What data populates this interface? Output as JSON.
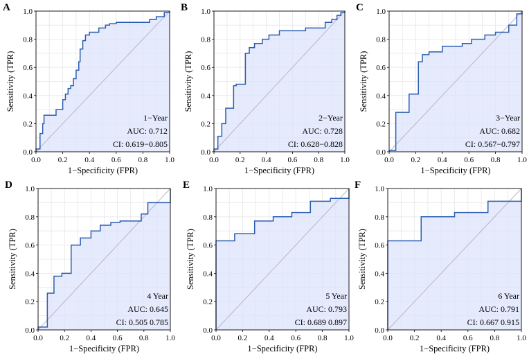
{
  "chart_data": [
    {
      "type": "line",
      "panel": "A",
      "series": [
        {
          "name": "ROC",
          "x": [
            0,
            0,
            0.03,
            0.03,
            0.05,
            0.05,
            0.06,
            0.06,
            0.1,
            0.15,
            0.15,
            0.2,
            0.2,
            0.22,
            0.22,
            0.24,
            0.24,
            0.26,
            0.26,
            0.28,
            0.28,
            0.3,
            0.3,
            0.32,
            0.32,
            0.33,
            0.33,
            0.35,
            0.35,
            0.37,
            0.37,
            0.4,
            0.4,
            0.47,
            0.47,
            0.52,
            0.52,
            0.55,
            0.55,
            0.6,
            0.6,
            0.85,
            0.85,
            0.9,
            0.9,
            0.96,
            0.96,
            1.0,
            1.0
          ],
          "y": [
            0,
            0.02,
            0.02,
            0.13,
            0.13,
            0.2,
            0.2,
            0.26,
            0.26,
            0.26,
            0.3,
            0.3,
            0.37,
            0.37,
            0.41,
            0.41,
            0.45,
            0.45,
            0.47,
            0.47,
            0.52,
            0.52,
            0.58,
            0.58,
            0.64,
            0.64,
            0.73,
            0.73,
            0.79,
            0.79,
            0.83,
            0.83,
            0.85,
            0.85,
            0.88,
            0.88,
            0.9,
            0.9,
            0.91,
            0.91,
            0.92,
            0.92,
            0.94,
            0.94,
            0.96,
            0.96,
            0.99,
            0.99,
            1.0
          ]
        }
      ],
      "xlabel": "1−Specificity (FPR)",
      "ylabel": "Sensitivity (TPR)",
      "xlim": [
        0,
        1
      ],
      "ylim": [
        0,
        1
      ],
      "xticks": [
        "0.0",
        "0.2",
        "0.4",
        "0.6",
        "0.8",
        "1.0"
      ],
      "yticks": [
        "0.0",
        "0.2",
        "0.4",
        "0.6",
        "0.8",
        "1.0"
      ],
      "annotations": [
        "1−Year",
        "AUC: 0.712",
        "CI: 0.619−0.805"
      ]
    },
    {
      "type": "line",
      "panel": "B",
      "series": [
        {
          "name": "ROC",
          "x": [
            0,
            0,
            0.03,
            0.03,
            0.06,
            0.06,
            0.09,
            0.09,
            0.15,
            0.15,
            0.17,
            0.17,
            0.24,
            0.24,
            0.27,
            0.27,
            0.31,
            0.31,
            0.37,
            0.37,
            0.42,
            0.42,
            0.5,
            0.5,
            0.7,
            0.7,
            0.85,
            0.85,
            0.9,
            0.9,
            0.94,
            0.94,
            0.97,
            0.97,
            1.0,
            1.0
          ],
          "y": [
            0,
            0.02,
            0.02,
            0.11,
            0.11,
            0.2,
            0.2,
            0.31,
            0.31,
            0.47,
            0.47,
            0.48,
            0.48,
            0.7,
            0.7,
            0.74,
            0.74,
            0.77,
            0.77,
            0.8,
            0.8,
            0.83,
            0.83,
            0.86,
            0.86,
            0.88,
            0.88,
            0.92,
            0.92,
            0.94,
            0.94,
            0.97,
            0.97,
            0.99,
            0.99,
            1.0
          ]
        }
      ],
      "xlabel": "1−Specificity (FPR)",
      "ylabel": "Sensitivity (TPR)",
      "xlim": [
        0,
        1
      ],
      "ylim": [
        0,
        1
      ],
      "xticks": [
        "0.0",
        "0.2",
        "0.4",
        "0.6",
        "0.8",
        "1.0"
      ],
      "yticks": [
        "0.0",
        "0.2",
        "0.4",
        "0.6",
        "0.8",
        "1.0"
      ],
      "annotations": [
        "2−Year",
        "AUC: 0.728",
        "CI: 0.628−0.828"
      ]
    },
    {
      "type": "line",
      "panel": "C",
      "series": [
        {
          "name": "ROC",
          "x": [
            0,
            0,
            0.05,
            0.05,
            0.15,
            0.15,
            0.22,
            0.22,
            0.25,
            0.25,
            0.3,
            0.3,
            0.4,
            0.4,
            0.55,
            0.55,
            0.62,
            0.62,
            0.72,
            0.72,
            0.8,
            0.8,
            0.9,
            0.9,
            0.96,
            0.96,
            1.0,
            1.0
          ],
          "y": [
            0,
            0.01,
            0.01,
            0.28,
            0.28,
            0.41,
            0.41,
            0.64,
            0.64,
            0.69,
            0.69,
            0.71,
            0.71,
            0.75,
            0.75,
            0.77,
            0.77,
            0.8,
            0.8,
            0.83,
            0.83,
            0.85,
            0.85,
            0.9,
            0.9,
            0.98,
            0.98,
            1.0
          ]
        }
      ],
      "xlabel": "1−Specificity (FPR)",
      "ylabel": "Sensitivity (TPR)",
      "xlim": [
        0,
        1
      ],
      "ylim": [
        0,
        1
      ],
      "xticks": [
        "0.0",
        "0.2",
        "0.4",
        "0.6",
        "0.8",
        "1.0"
      ],
      "yticks": [
        "0.0",
        "0.2",
        "0.4",
        "0.6",
        "0.8",
        "1.0"
      ],
      "annotations": [
        "3−Year",
        "AUC: 0.682",
        "CI: 0.567−0.797"
      ]
    },
    {
      "type": "line",
      "panel": "D",
      "series": [
        {
          "name": "ROC",
          "x": [
            0,
            0,
            0.07,
            0.07,
            0.12,
            0.12,
            0.18,
            0.18,
            0.25,
            0.25,
            0.32,
            0.32,
            0.4,
            0.4,
            0.47,
            0.47,
            0.55,
            0.55,
            0.62,
            0.62,
            0.78,
            0.78,
            0.83,
            0.83,
            1.0,
            1.0
          ],
          "y": [
            0,
            0.02,
            0.02,
            0.26,
            0.26,
            0.38,
            0.38,
            0.4,
            0.4,
            0.6,
            0.6,
            0.65,
            0.65,
            0.7,
            0.7,
            0.74,
            0.74,
            0.76,
            0.76,
            0.77,
            0.77,
            0.82,
            0.82,
            0.9,
            0.9,
            1.0
          ]
        }
      ],
      "xlabel": "1−Specificity (FPR)",
      "ylabel": "Sensitivity (TPR)",
      "xlim": [
        0,
        1
      ],
      "ylim": [
        0,
        1
      ],
      "xticks": [
        "0.0",
        "0.2",
        "0.4",
        "0.6",
        "0.8",
        "1.0"
      ],
      "yticks": [
        "0.0",
        "0.2",
        "0.4",
        "0.6",
        "0.8",
        "1.0"
      ],
      "annotations": [
        "4  Year",
        "AUC: 0.645",
        "CI: 0.505  0.785"
      ]
    },
    {
      "type": "line",
      "panel": "E",
      "series": [
        {
          "name": "ROC",
          "x": [
            0,
            0,
            0.14,
            0.14,
            0.29,
            0.29,
            0.43,
            0.43,
            0.57,
            0.57,
            0.71,
            0.71,
            0.86,
            0.86,
            1.0,
            1.0
          ],
          "y": [
            0,
            0.63,
            0.63,
            0.68,
            0.68,
            0.77,
            0.77,
            0.8,
            0.8,
            0.83,
            0.83,
            0.91,
            0.91,
            0.93,
            0.93,
            1.0
          ]
        }
      ],
      "xlabel": "1−Specificity (FPR)",
      "ylabel": "Sensitivity (TPR)",
      "xlim": [
        0,
        1
      ],
      "ylim": [
        0,
        1
      ],
      "xticks": [
        "0.0",
        "0.2",
        "0.4",
        "0.6",
        "0.8",
        "1.0"
      ],
      "yticks": [
        "0.0",
        "0.2",
        "0.4",
        "0.6",
        "0.8",
        "1.0"
      ],
      "annotations": [
        "5  Year",
        "AUC: 0.793",
        "CI: 0.689  0.897"
      ]
    },
    {
      "type": "line",
      "panel": "F",
      "series": [
        {
          "name": "ROC",
          "x": [
            0,
            0,
            0.25,
            0.25,
            0.5,
            0.5,
            0.75,
            0.75,
            1.0,
            1.0
          ],
          "y": [
            0,
            0.63,
            0.63,
            0.8,
            0.8,
            0.83,
            0.83,
            0.91,
            0.91,
            1.0
          ]
        }
      ],
      "xlabel": "1−Specificity (FPR)",
      "ylabel": "Sensitivity (TPR)",
      "xlim": [
        0,
        1
      ],
      "ylim": [
        0,
        1
      ],
      "xticks": [
        "0.0",
        "0.2",
        "0.4",
        "0.6",
        "0.8",
        "1.0"
      ],
      "yticks": [
        "0.0",
        "0.2",
        "0.4",
        "0.6",
        "0.8",
        "1.0"
      ],
      "annotations": [
        "6  Year",
        "AUC: 0.791",
        "CI: 0.667  0.915"
      ]
    }
  ]
}
